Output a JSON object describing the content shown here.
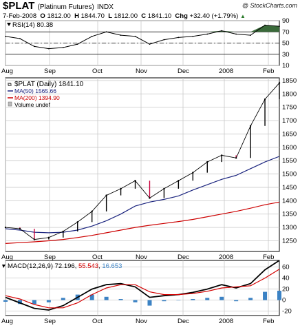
{
  "header": {
    "symbol": "$PLAT",
    "name": "(Platinum Futures)",
    "exchange": "INDX",
    "copyright": "@ StockCharts.com",
    "date": "7-Feb-2008",
    "open_label": "O",
    "open": "1812.00",
    "high_label": "H",
    "high": "1844.70",
    "low_label": "L",
    "low": "1812.00",
    "close_label": "C",
    "close": "1841.10",
    "chg_label": "Chg",
    "chg": "+32.40 (+1.79%)",
    "up_arrow": "▲"
  },
  "colors": {
    "price_up": "#000000",
    "price_down": "#c8003c",
    "ma50": "#1a237e",
    "ma200": "#cc0000",
    "rsi_fill": "#3a6a3a",
    "macd_line": "#000000",
    "macd_signal": "#d40000",
    "macd_hist": "#3b82c4",
    "grid": "#c8c8c8"
  },
  "x_ticks": [
    "Aug",
    "Sep",
    "Oct",
    "Nov",
    "Dec",
    "2008",
    "Feb"
  ],
  "chart_data": [
    {
      "type": "line",
      "panel": "RSI",
      "title": "RSI(14) 80.38",
      "yticks": [
        10,
        30,
        50,
        70,
        90
      ],
      "ylim": [
        10,
        90
      ],
      "reference_lines": [
        30,
        50,
        70
      ],
      "x": [
        "Aug",
        "Aug",
        "Aug",
        "Sep",
        "Sep",
        "Sep",
        "Oct",
        "Oct",
        "Oct",
        "Nov",
        "Nov",
        "Nov",
        "Dec",
        "Dec",
        "Dec",
        "2008",
        "2008",
        "2008",
        "Feb",
        "Feb"
      ],
      "series": [
        {
          "values": [
            62,
            58,
            44,
            40,
            42,
            48,
            62,
            70,
            64,
            62,
            48,
            56,
            60,
            62,
            66,
            72,
            66,
            64,
            82,
            80
          ]
        }
      ]
    },
    {
      "type": "line",
      "panel": "Price",
      "title": "$PLAT (Daily) 1841.10",
      "legend": [
        "$PLAT (Daily) 1841.10",
        "MA(50) 1565.66",
        "MA(200) 1394.90",
        "Volume undef"
      ],
      "yticks": [
        1250,
        1300,
        1350,
        1400,
        1450,
        1500,
        1550,
        1600,
        1650,
        1700,
        1750,
        1800,
        1850
      ],
      "ylim": [
        1210,
        1860
      ],
      "x": [
        "Aug",
        "Aug",
        "Aug",
        "Sep",
        "Sep",
        "Sep",
        "Oct",
        "Oct",
        "Oct",
        "Nov",
        "Nov",
        "Nov",
        "Dec",
        "Dec",
        "Dec",
        "2008",
        "2008",
        "2008",
        "Feb",
        "Feb"
      ],
      "series": [
        {
          "name": "$PLAT (Daily) 1841.10",
          "values": [
            1300,
            1295,
            1255,
            1262,
            1285,
            1320,
            1360,
            1420,
            1445,
            1475,
            1410,
            1445,
            1475,
            1505,
            1545,
            1570,
            1560,
            1680,
            1780,
            1841
          ]
        },
        {
          "name": "MA(50) 1565.66",
          "values": [
            1295,
            1290,
            1282,
            1280,
            1282,
            1290,
            1305,
            1325,
            1350,
            1380,
            1395,
            1405,
            1418,
            1440,
            1460,
            1480,
            1495,
            1520,
            1545,
            1566
          ]
        },
        {
          "name": "MA(200) 1394.90",
          "values": [
            1240,
            1243,
            1246,
            1250,
            1255,
            1262,
            1270,
            1280,
            1290,
            1300,
            1308,
            1315,
            1322,
            1330,
            1340,
            1350,
            1360,
            1372,
            1385,
            1395
          ]
        }
      ]
    },
    {
      "type": "line",
      "panel": "MACD",
      "title": "MACD(12,26,9) 72.196, 55.543, 16.653",
      "title_parts": {
        "prefix": "MACD(12,26,9)",
        "macd": "72.196",
        "signal": "55.543",
        "hist": "16.653"
      },
      "yticks": [
        -20,
        0,
        20,
        40,
        60
      ],
      "ylim": [
        -28,
        72
      ],
      "x": [
        "Aug",
        "Aug",
        "Aug",
        "Sep",
        "Sep",
        "Sep",
        "Oct",
        "Oct",
        "Oct",
        "Nov",
        "Nov",
        "Nov",
        "Dec",
        "Dec",
        "Dec",
        "2008",
        "2008",
        "2008",
        "Feb",
        "Feb"
      ],
      "series": [
        {
          "name": "MACD",
          "values": [
            5,
            -5,
            -15,
            -18,
            -10,
            5,
            20,
            28,
            30,
            24,
            5,
            8,
            10,
            14,
            20,
            28,
            22,
            30,
            55,
            72
          ]
        },
        {
          "name": "Signal",
          "values": [
            8,
            2,
            -8,
            -14,
            -14,
            -5,
            10,
            22,
            28,
            28,
            15,
            10,
            10,
            12,
            16,
            22,
            24,
            26,
            40,
            56
          ]
        },
        {
          "name": "Histogram",
          "values": [
            -3,
            -7,
            -7,
            -4,
            4,
            10,
            10,
            6,
            2,
            -4,
            -10,
            -2,
            0,
            2,
            4,
            6,
            -2,
            4,
            15,
            17
          ]
        }
      ]
    }
  ]
}
